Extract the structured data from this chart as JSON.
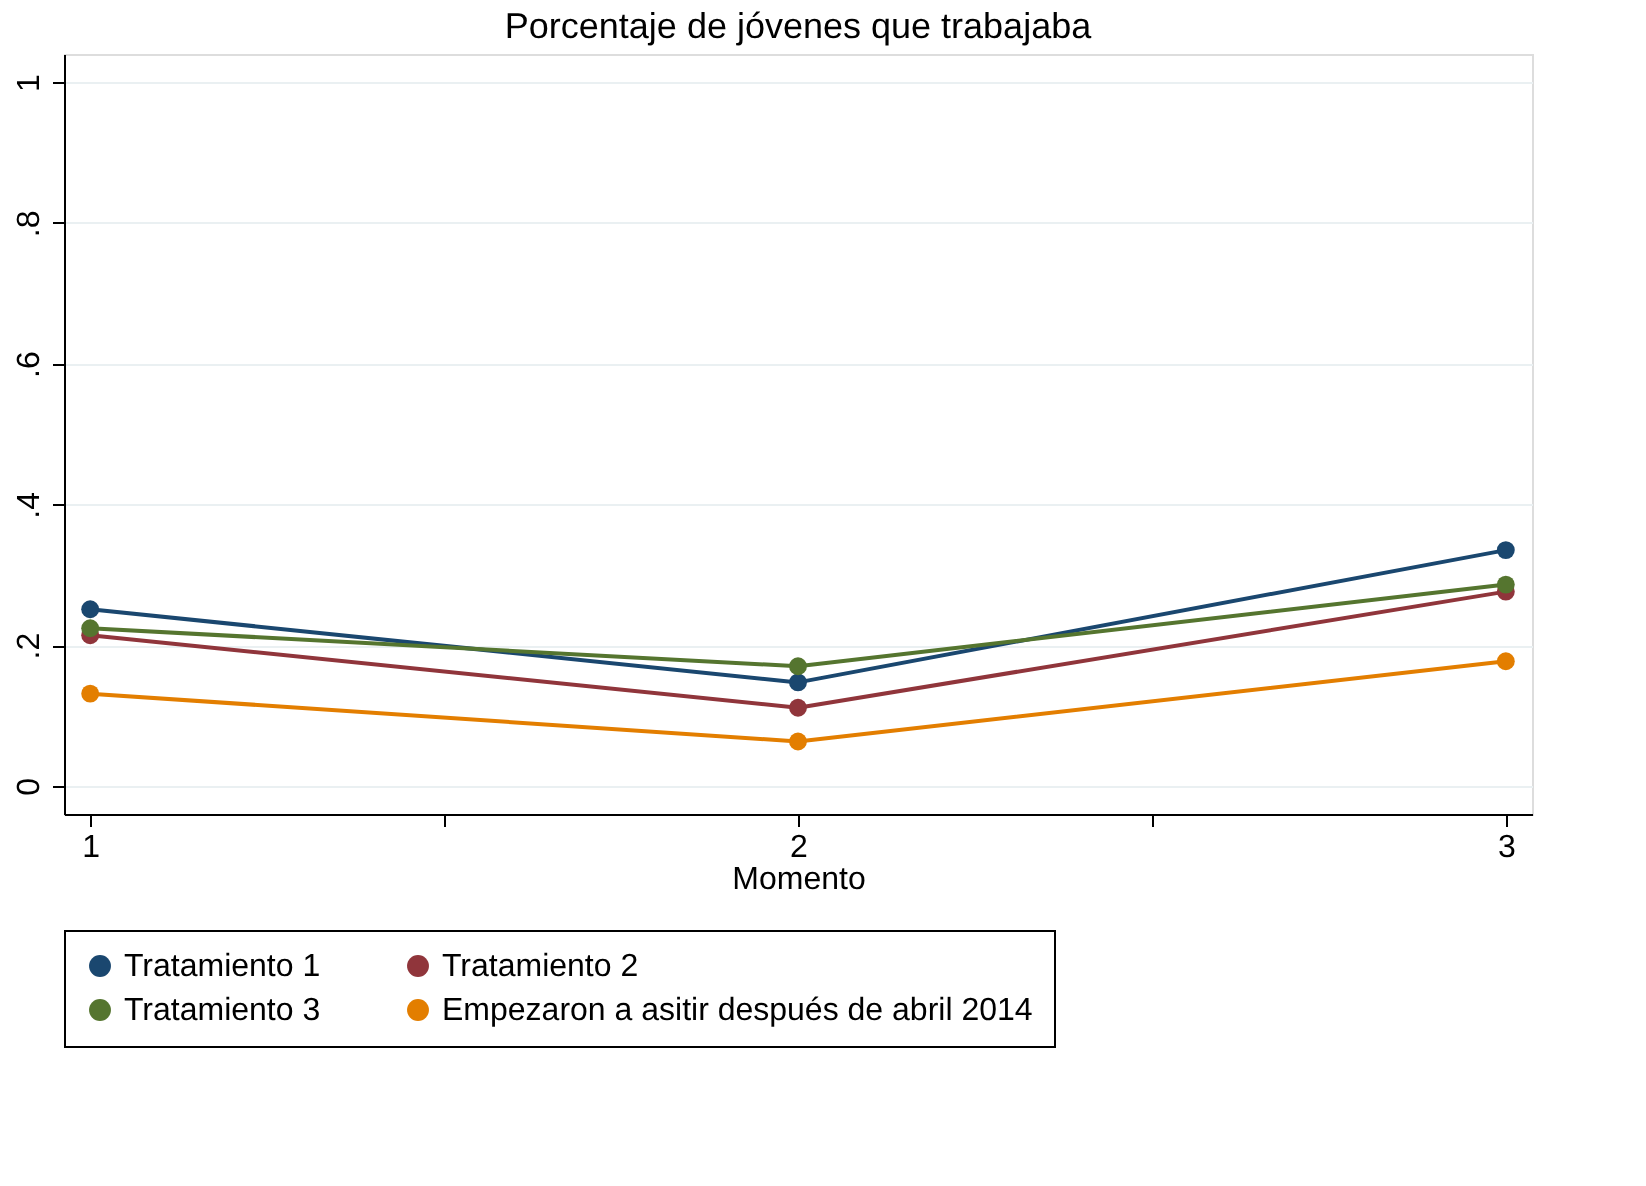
{
  "chart_data": {
    "type": "line",
    "title": "Porcentaje de jóvenes que trabajaba",
    "xlabel": "Momento",
    "x": [
      1,
      2,
      3
    ],
    "series": [
      {
        "name": "Tratamiento 1",
        "color": "#1a476f",
        "values": [
          0.251,
          0.147,
          0.335
        ]
      },
      {
        "name": "Tratamiento 2",
        "color": "#90353b",
        "values": [
          0.214,
          0.111,
          0.276
        ]
      },
      {
        "name": "Tratamiento 3",
        "color": "#55752f",
        "values": [
          0.224,
          0.17,
          0.286
        ]
      },
      {
        "name": "Empezaron a asitir después de abril 2014",
        "color": "#e37e00",
        "values": [
          0.131,
          0.063,
          0.177
        ]
      }
    ],
    "xlim": [
      0.963,
      3.037
    ],
    "xticks": [
      1,
      {
        "value": 1.5,
        "label": null
      },
      2,
      {
        "value": 2.5,
        "label": null
      },
      3
    ],
    "ylim": [
      -0.04,
      1.04
    ],
    "yticks": [
      0,
      {
        "value": 0.2,
        "label": ".2"
      },
      {
        "value": 0.4,
        "label": ".4"
      },
      {
        "value": 0.6,
        "label": ".6"
      },
      {
        "value": 0.8,
        "label": ".8"
      },
      1
    ],
    "grid": "y",
    "legend": "bottom",
    "marker": "circle",
    "line_style": "solid"
  }
}
